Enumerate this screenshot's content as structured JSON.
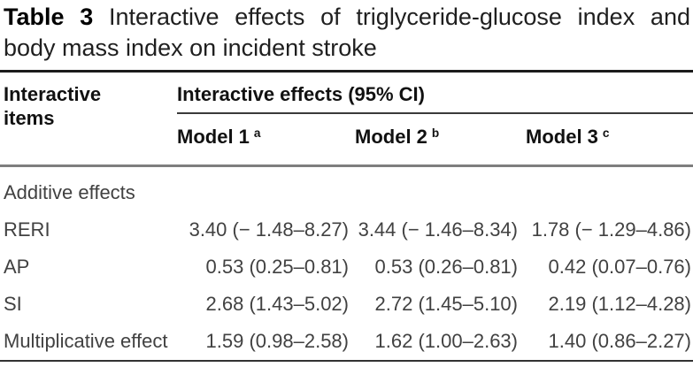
{
  "caption": {
    "table_number": "Table 3",
    "line1_rest": "Interactive effects of triglyceride-glucose index and",
    "line2": "body mass index on incident stroke"
  },
  "table": {
    "stub_header": "Interactive items",
    "group_header": "Interactive effects (95% CI)",
    "columns": [
      {
        "label": "Model 1",
        "sup": "a"
      },
      {
        "label": "Model 2",
        "sup": "b"
      },
      {
        "label": "Model 3",
        "sup": "c"
      }
    ],
    "rows": [
      {
        "label": "Additive effects"
      },
      {
        "label": "RERI",
        "values": [
          "3.40 (− 1.48–8.27)",
          "3.44 (− 1.46–8.34)",
          "1.78 (− 1.29–4.86)"
        ]
      },
      {
        "label": "AP",
        "values": [
          "0.53 (0.25–0.81)",
          "0.53 (0.26–0.81)",
          "0.42 (0.07–0.76)"
        ]
      },
      {
        "label": "SI",
        "values": [
          "2.68 (1.43–5.02)",
          "2.72 (1.45–5.10)",
          "2.19 (1.12–4.28)"
        ]
      },
      {
        "label": "Multiplicative effect",
        "values": [
          "1.59 (0.98–2.58)",
          "1.62 (1.00–2.63)",
          "1.40 (0.86–2.27)"
        ]
      }
    ]
  },
  "colors": {
    "rule_dark": "#1b1b1b",
    "rule_gray": "#7e7e7e",
    "text_header": "#111111",
    "text_body": "#414141"
  }
}
